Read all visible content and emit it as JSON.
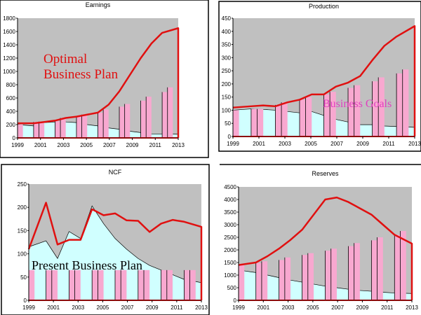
{
  "chart_data": [
    {
      "type": "bar+line+area",
      "title": "Earnings",
      "ylim": [
        0,
        1800
      ],
      "yticks": [
        0,
        200,
        400,
        600,
        800,
        1000,
        1200,
        1400,
        1600,
        1800
      ],
      "x": [
        1999,
        2000,
        2001,
        2002,
        2003,
        2004,
        2005,
        2006,
        2007,
        2008,
        2009,
        2010,
        2011,
        2012,
        2013
      ],
      "xticklabels": [
        "1999",
        "2001",
        "2003",
        "2005",
        "2007",
        "2009",
        "2011",
        "2013"
      ],
      "annotation": "Optimal Business Plan",
      "annotation_color": "#e01010",
      "line": [
        220,
        220,
        240,
        260,
        300,
        320,
        350,
        380,
        500,
        700,
        950,
        1200,
        1420,
        1580,
        1650
      ],
      "bars": [
        200,
        240,
        245,
        250,
        300,
        320,
        350,
        380,
        430,
        470,
        510,
        560,
        620,
        690,
        760
      ],
      "area": [
        200,
        180,
        230,
        240,
        240,
        230,
        200,
        180,
        150,
        130,
        100,
        80,
        60,
        60,
        55
      ]
    },
    {
      "type": "bar+line+area",
      "title": "Production",
      "ylim": [
        0,
        450
      ],
      "yticks": [
        0,
        50,
        100,
        150,
        200,
        250,
        300,
        350,
        400,
        450
      ],
      "x": [
        1999,
        2000,
        2001,
        2002,
        2003,
        2004,
        2005,
        2006,
        2007,
        2008,
        2009,
        2010,
        2011,
        2012,
        2013
      ],
      "xticklabels": [
        "1999",
        "2001",
        "2003",
        "2005",
        "2007",
        "2009",
        "2011",
        "2013"
      ],
      "annotation": "Business Goals",
      "annotation_color": "#e040c0",
      "line": [
        110,
        115,
        118,
        115,
        130,
        140,
        160,
        160,
        190,
        205,
        230,
        290,
        345,
        380,
        420
      ],
      "bars": [
        100,
        105,
        105,
        120,
        130,
        140,
        150,
        160,
        170,
        185,
        195,
        210,
        225,
        240,
        255
      ],
      "area": [
        100,
        105,
        103,
        100,
        95,
        90,
        95,
        80,
        65,
        55,
        45,
        45,
        40,
        38,
        35
      ]
    },
    {
      "type": "bar+line+area",
      "title": "NCF",
      "ylim": [
        0,
        250
      ],
      "yticks": [
        0,
        50,
        100,
        150,
        200,
        250
      ],
      "x": [
        1999,
        2000,
        2001,
        2002,
        2003,
        2004,
        2005,
        2006,
        2007,
        2008,
        2009,
        2010,
        2011,
        2012,
        2013
      ],
      "xticklabels": [
        "1999",
        "2001",
        "2003",
        "2005",
        "2007",
        "2009",
        "2011",
        "2013"
      ],
      "annotation": "Present Business Plan",
      "annotation_color": "#000000",
      "line": [
        110,
        210,
        120,
        130,
        130,
        196,
        183,
        187,
        172,
        171,
        147,
        165,
        173,
        169,
        158
      ],
      "bars": [
        65,
        65,
        65,
        65,
        65,
        65,
        65,
        65,
        65,
        65,
        65,
        65,
        65,
        65,
        65
      ],
      "area": [
        115,
        128,
        90,
        148,
        133,
        203,
        165,
        133,
        110,
        90,
        75,
        65,
        55,
        45,
        38
      ]
    },
    {
      "type": "bar+line+area",
      "title": "Reserves",
      "ylim": [
        0,
        4500
      ],
      "yticks": [
        0,
        500,
        1000,
        1500,
        2000,
        2500,
        3000,
        3500,
        4000,
        4500
      ],
      "x": [
        1999,
        2000,
        2001,
        2002,
        2003,
        2004,
        2005,
        2006,
        2007,
        2008,
        2009,
        2010,
        2011,
        2012,
        2013
      ],
      "xticklabels": [
        "1999",
        "2001",
        "2003",
        "2005",
        "2007",
        "2009",
        "2011",
        "2013"
      ],
      "annotation": "",
      "annotation_color": "",
      "line": [
        1400,
        1500,
        1750,
        2050,
        2400,
        2800,
        3400,
        4000,
        4080,
        3900,
        3650,
        3400,
        3000,
        2600,
        2250
      ],
      "bars": [
        1400,
        1480,
        1550,
        1600,
        1700,
        1800,
        1870,
        1970,
        2050,
        2150,
        2270,
        2380,
        2500,
        2600,
        2750
      ],
      "area": [
        1200,
        1100,
        1000,
        900,
        800,
        720,
        640,
        560,
        500,
        440,
        390,
        360,
        320,
        290,
        270
      ]
    }
  ],
  "colors": {
    "plot_bg": "#c0c0c0",
    "line": "#e01010",
    "bars": "#f8a8d0",
    "area": "#d0ffff"
  }
}
